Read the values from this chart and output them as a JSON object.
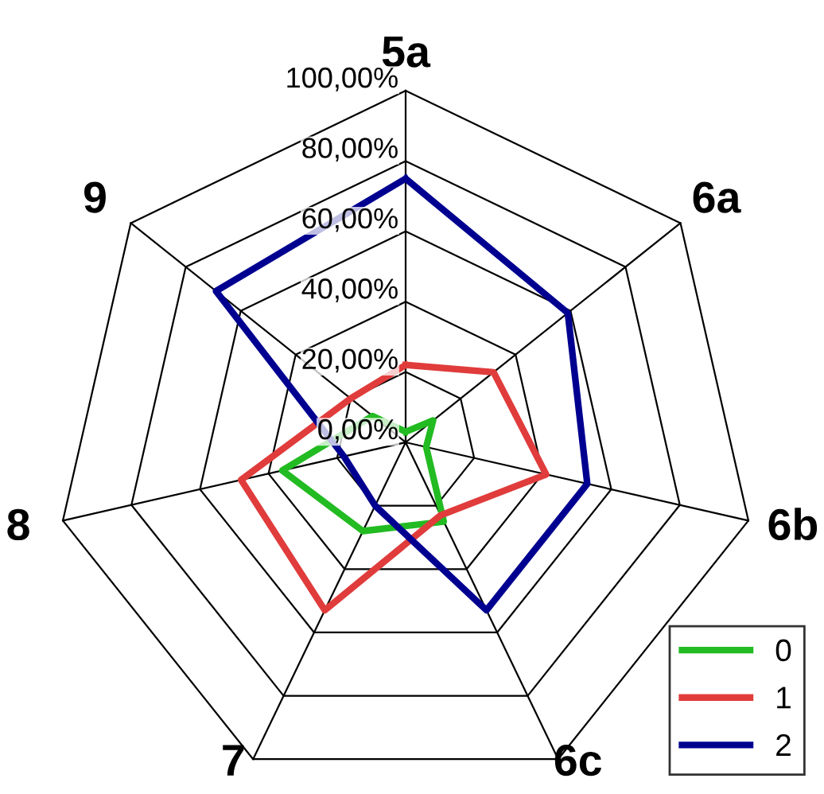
{
  "chart_data": {
    "type": "radar",
    "categories": [
      "5a",
      "6a",
      "6b",
      "6c",
      "7",
      "8",
      "9"
    ],
    "ylim": [
      0,
      100
    ],
    "yticks": [
      {
        "value": 0,
        "label": "0,00%"
      },
      {
        "value": 20,
        "label": "20,00%"
      },
      {
        "value": 40,
        "label": "40,00%"
      },
      {
        "value": 60,
        "label": "60,00%"
      },
      {
        "value": 80,
        "label": "80,00%"
      },
      {
        "value": 100,
        "label": "100,00%"
      }
    ],
    "legend": "bottom right",
    "series": [
      {
        "name": "0",
        "color": "#22bb22",
        "values": [
          3,
          10,
          6,
          25,
          28,
          36,
          12
        ]
      },
      {
        "name": "1",
        "color": "#e03c3c",
        "values": [
          22,
          32,
          41,
          23,
          53,
          48,
          20
        ]
      },
      {
        "name": "2",
        "color": "#000090",
        "values": [
          75,
          59,
          53,
          53,
          20,
          18,
          69
        ]
      }
    ]
  }
}
